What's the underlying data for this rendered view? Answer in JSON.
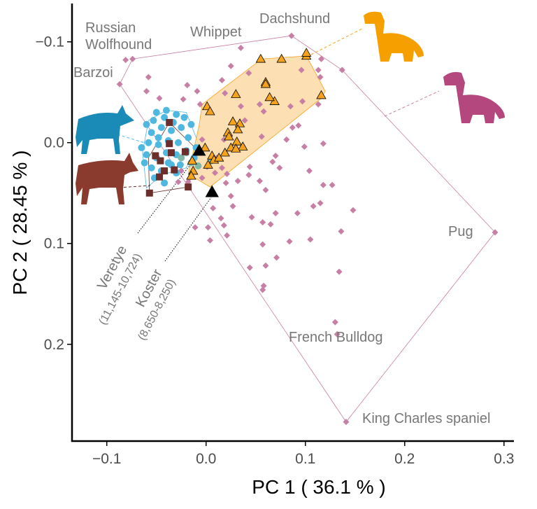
{
  "chart_data": {
    "type": "scatter",
    "xlabel": "PC 1 ( 36.1 % )",
    "ylabel": "PC 2 ( 28.45 % )",
    "xlim": [
      -0.135,
      0.31
    ],
    "ylim": [
      -0.138,
      0.296
    ],
    "y_reversed": true,
    "grid": false,
    "xticks": [
      {
        "v": -0.1,
        "label": "−0.1"
      },
      {
        "v": 0,
        "label": "0.0"
      },
      {
        "v": 0.1,
        "label": "0.1"
      },
      {
        "v": 0.2,
        "label": "0.2"
      },
      {
        "v": 0.3,
        "label": "0.3"
      }
    ],
    "yticks": [
      {
        "v": -0.1,
        "label": "−0.1"
      },
      {
        "v": 0,
        "label": "0.0"
      },
      {
        "v": 0.1,
        "label": "0.1"
      },
      {
        "v": 0.2,
        "label": "0.2"
      }
    ],
    "series": [
      {
        "marker": "diamond",
        "color": "#c77fa6",
        "hull": [
          [
            -0.087,
            -0.058
          ],
          [
            -0.074,
            -0.083
          ],
          [
            0.086,
            -0.106
          ],
          [
            0.137,
            -0.072
          ],
          [
            0.291,
            0.089
          ],
          [
            0.141,
            0.277
          ]
        ],
        "points": [
          [
            -0.087,
            -0.058
          ],
          [
            -0.074,
            -0.083
          ],
          [
            -0.081,
            -0.082
          ],
          [
            0.086,
            -0.106
          ],
          [
            0.137,
            -0.072
          ],
          [
            0.291,
            0.089
          ],
          [
            0.141,
            0.277
          ],
          [
            0.035,
            -0.094
          ],
          [
            0.116,
            -0.083
          ],
          [
            0.096,
            -0.072
          ],
          [
            0.113,
            -0.072
          ],
          [
            -0.06,
            -0.051
          ],
          [
            -0.058,
            -0.065
          ],
          [
            -0.047,
            -0.044
          ],
          [
            -0.019,
            -0.057
          ],
          [
            -0.009,
            -0.051
          ],
          [
            -0.023,
            -0.043
          ],
          [
            -0.006,
            -0.038
          ],
          [
            0.016,
            -0.062
          ],
          [
            0.025,
            -0.076
          ],
          [
            0.019,
            -0.049
          ],
          [
            0.043,
            -0.069
          ],
          [
            0.035,
            -0.036
          ],
          [
            0.054,
            -0.038
          ],
          [
            0.039,
            -0.022
          ],
          [
            0.058,
            -0.031
          ],
          [
            0.085,
            -0.036
          ],
          [
            0.097,
            -0.041
          ],
          [
            0.115,
            -0.065
          ],
          [
            0.113,
            -0.038
          ],
          [
            0.087,
            -0.015
          ],
          [
            0.118,
            0.001
          ],
          [
            0.118,
            0.042
          ],
          [
            0.115,
            0.06
          ],
          [
            0.104,
            0.028
          ],
          [
            0.093,
            -0.017
          ],
          [
            0.056,
            -0.006
          ],
          [
            0.018,
            -0.003
          ],
          [
            0.001,
            0.024
          ],
          [
            0.021,
            0.031
          ],
          [
            0.032,
            0.038
          ],
          [
            0.043,
            0.032
          ],
          [
            0.054,
            0.038
          ],
          [
            0.025,
            0.053
          ],
          [
            0.007,
            0.065
          ],
          [
            0.015,
            0.075
          ],
          [
            0.018,
            0.082
          ],
          [
            0.027,
            0.063
          ],
          [
            0.046,
            0.074
          ],
          [
            0.057,
            0.079
          ],
          [
            0.07,
            0.07
          ],
          [
            0.092,
            0.07
          ],
          [
            0.108,
            0.063
          ],
          [
            0.148,
            0.067
          ],
          [
            0.136,
            0.088
          ],
          [
            0.127,
            0.042
          ],
          [
            -0.011,
            0.084
          ],
          [
            0.002,
            0.084
          ],
          [
            0.021,
            0.092
          ],
          [
            0.057,
            0.101
          ],
          [
            0.058,
            0.142
          ],
          [
            0.057,
            0.146
          ],
          [
            0.044,
            0.124
          ],
          [
            0.06,
            0.122
          ],
          [
            0.071,
            0.114
          ],
          [
            0.084,
            0.098
          ],
          [
            0.105,
            0.096
          ],
          [
            0.13,
            0.178
          ],
          [
            0.134,
            0.128
          ],
          [
            0.132,
            0.19
          ],
          [
            0.065,
            0.081
          ],
          [
            0.004,
            0.097
          ],
          [
            -0.025,
            0.028
          ],
          [
            -0.028,
            0.039
          ],
          [
            0.044,
            0.024
          ],
          [
            0.067,
            0.019
          ],
          [
            0.074,
            0.025
          ],
          [
            0.081,
            -0.003
          ],
          [
            0.099,
            0.004
          ],
          [
            0.07,
            0.013
          ],
          [
            0.06,
            0.047
          ],
          [
            -0.018,
            0.039
          ],
          [
            -0.004,
            0.035
          ],
          [
            0.011,
            0.015
          ],
          [
            0.016,
            0.025
          ],
          [
            -0.004,
            -0.003
          ],
          [
            0.009,
            0.03
          ],
          [
            0.02,
            0.04
          ]
        ]
      },
      {
        "marker": "circle",
        "color": "#4fb8e0",
        "hull": [
          [
            -0.058,
            -0.022
          ],
          [
            -0.04,
            -0.032
          ],
          [
            -0.02,
            -0.03
          ],
          [
            -0.008,
            0.0
          ],
          [
            -0.02,
            0.025
          ],
          [
            -0.045,
            0.032
          ],
          [
            -0.06,
            0.045
          ],
          [
            -0.064,
            0.01
          ]
        ],
        "points": [
          [
            -0.05,
            -0.03
          ],
          [
            -0.04,
            -0.032
          ],
          [
            -0.03,
            -0.028
          ],
          [
            -0.022,
            -0.025
          ],
          [
            -0.06,
            -0.018
          ],
          [
            -0.055,
            -0.01
          ],
          [
            -0.045,
            -0.015
          ],
          [
            -0.035,
            -0.012
          ],
          [
            -0.025,
            -0.015
          ],
          [
            -0.015,
            -0.018
          ],
          [
            -0.058,
            0.0
          ],
          [
            -0.048,
            0.002
          ],
          [
            -0.038,
            -0.002
          ],
          [
            -0.028,
            0.0
          ],
          [
            -0.018,
            -0.005
          ],
          [
            -0.06,
            0.012
          ],
          [
            -0.05,
            0.015
          ],
          [
            -0.04,
            0.01
          ],
          [
            -0.03,
            0.012
          ],
          [
            -0.02,
            0.008
          ],
          [
            -0.055,
            0.025
          ],
          [
            -0.045,
            0.028
          ],
          [
            -0.035,
            0.022
          ],
          [
            -0.062,
            0.02
          ],
          [
            -0.052,
            0.035
          ],
          [
            -0.042,
            0.04
          ],
          [
            -0.03,
            0.03
          ],
          [
            -0.065,
            0.005
          ],
          [
            -0.042,
            -0.025
          ],
          [
            -0.033,
            -0.02
          ],
          [
            -0.01,
            0.005
          ],
          [
            -0.012,
            0.015
          ],
          [
            -0.048,
            -0.005
          ],
          [
            -0.038,
            0.02
          ],
          [
            -0.026,
            0.022
          ],
          [
            -0.053,
            -0.022
          ]
        ]
      },
      {
        "marker": "circle",
        "color": "#7fb8a8",
        "hull": [],
        "points": [
          [
            -0.02,
            0.01
          ],
          [
            -0.015,
            0.02
          ],
          [
            0.005,
            0.018
          ],
          [
            -0.008,
            0.023
          ],
          [
            -0.025,
            0.015
          ]
        ]
      },
      {
        "marker": "square",
        "color": "#6b2e2a",
        "hull": [
          [
            -0.037,
            -0.02
          ],
          [
            -0.008,
            0.008
          ],
          [
            -0.018,
            0.044
          ],
          [
            -0.057,
            0.05
          ],
          [
            -0.058,
            0.015
          ]
        ],
        "points": [
          [
            -0.037,
            -0.02
          ],
          [
            -0.037,
            0.001
          ],
          [
            -0.051,
            0.013
          ],
          [
            -0.057,
            0.05
          ],
          [
            -0.018,
            0.044
          ],
          [
            -0.042,
            0.028
          ],
          [
            -0.047,
            0.034
          ],
          [
            -0.032,
            0.027
          ],
          [
            -0.021,
            0.009
          ],
          [
            -0.046,
            0.018
          ],
          [
            -0.035,
            0.01
          ]
        ]
      },
      {
        "marker": "triangle",
        "color": "#f5a31a",
        "fill_hull": "#fbd9a4",
        "hull": [
          [
            -0.004,
            -0.038
          ],
          [
            0.056,
            -0.083
          ],
          [
            0.101,
            -0.086
          ],
          [
            0.12,
            -0.051
          ],
          [
            0.116,
            -0.044
          ],
          [
            0.004,
            0.044
          ],
          [
            -0.018,
            0.031
          ],
          [
            -0.007,
            -0.017
          ]
        ],
        "points": [
          [
            0.055,
            -0.083
          ],
          [
            0.076,
            -0.083
          ],
          [
            0.101,
            -0.086
          ],
          [
            0.101,
            -0.089
          ],
          [
            0.116,
            -0.047
          ],
          [
            0.06,
            -0.06
          ],
          [
            0.06,
            -0.058
          ],
          [
            0.069,
            -0.041
          ],
          [
            0.064,
            -0.045
          ],
          [
            0.03,
            -0.048
          ],
          [
            0.001,
            -0.036
          ],
          [
            0.004,
            -0.031
          ],
          [
            0.027,
            -0.021
          ],
          [
            0.034,
            -0.019
          ],
          [
            0.032,
            -0.013
          ],
          [
            0.022,
            -0.01
          ],
          [
            0.023,
            -0.006
          ],
          [
            0.031,
            -0.001
          ],
          [
            0.037,
            0.004
          ],
          [
            0.025,
            0.005
          ],
          [
            0.03,
            0.006
          ],
          [
            0.019,
            0.01
          ],
          [
            0.006,
            0.013
          ],
          [
            0.008,
            0.017
          ],
          [
            0.013,
            0.015
          ],
          [
            0.002,
            0.022
          ],
          [
            -0.014,
            0.018
          ],
          [
            -0.013,
            0.028
          ],
          [
            -0.015,
            0.033
          ],
          [
            -0.001,
            0.005
          ]
        ]
      },
      {
        "marker": "triangle",
        "color": "#000000",
        "hull": [],
        "points": [
          [
            -0.007,
            0.008
          ],
          [
            0.006,
            0.049
          ]
        ]
      }
    ],
    "annotations": {
      "russian": "Russian",
      "wolfhound": "Wolfhound",
      "barzoi": "Barzoi",
      "whippet": "Whippet",
      "dachshund": "Dachshund",
      "pug": "Pug",
      "french_bulldog": "French Bulldog",
      "king_charles": "King Charles spaniel",
      "veretye": "Veretye",
      "veretye_date": "(11,145-10,724)",
      "koster": "Koster",
      "koster_date": "(8,650-8,250)"
    }
  }
}
